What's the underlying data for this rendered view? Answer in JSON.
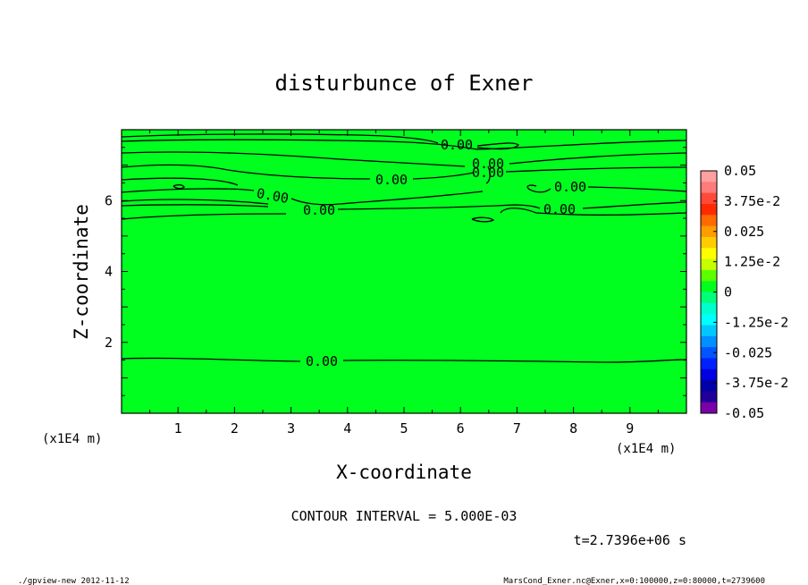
{
  "chart_data": {
    "type": "contour",
    "title": "disturbunce of Exner",
    "xlabel": "X-coordinate",
    "ylabel": "Z-coordinate",
    "x_unit": "(x1E4 m)",
    "y_unit": "(x1E4 m)",
    "xlim": [
      0,
      10
    ],
    "ylim": [
      0,
      8
    ],
    "x_ticks": [
      1,
      2,
      3,
      4,
      5,
      6,
      7,
      8,
      9
    ],
    "y_ticks": [
      2,
      4,
      6
    ],
    "fill_color": "#00ff1f",
    "colorbar": {
      "labels": [
        "0.05",
        "3.75e-2",
        "0.025",
        "1.25e-2",
        "0",
        "-1.25e-2",
        "-0.025",
        "-3.75e-2",
        "-0.05"
      ],
      "colors": [
        "#ffa0a0",
        "#ff7a7a",
        "#ff4a3a",
        "#ff2a00",
        "#ff6a00",
        "#ff9c00",
        "#ffcc00",
        "#ffff00",
        "#c6ff00",
        "#5cff00",
        "#00ff1f",
        "#00ff7a",
        "#00ffcc",
        "#00ffff",
        "#00c8ff",
        "#0090ff",
        "#0055ff",
        "#0020ff",
        "#0000e0",
        "#0000a8",
        "#20009a",
        "#7a00a8"
      ]
    },
    "contour_labels": [
      "0.00",
      "0.00",
      "0.00",
      "0.00",
      "0.00",
      "0.00",
      "0.00",
      "0.00",
      "0.00",
      "0.00"
    ],
    "contour_interval_text": "CONTOUR INTERVAL = 5.000E-03",
    "time_text": "t=2.7396e+06 s"
  },
  "footer": {
    "left": "./gpview-new  2012-11-12",
    "right": "MarsCond_Exner.nc@Exner,x=0:100000,z=0:80000,t=2739600"
  }
}
